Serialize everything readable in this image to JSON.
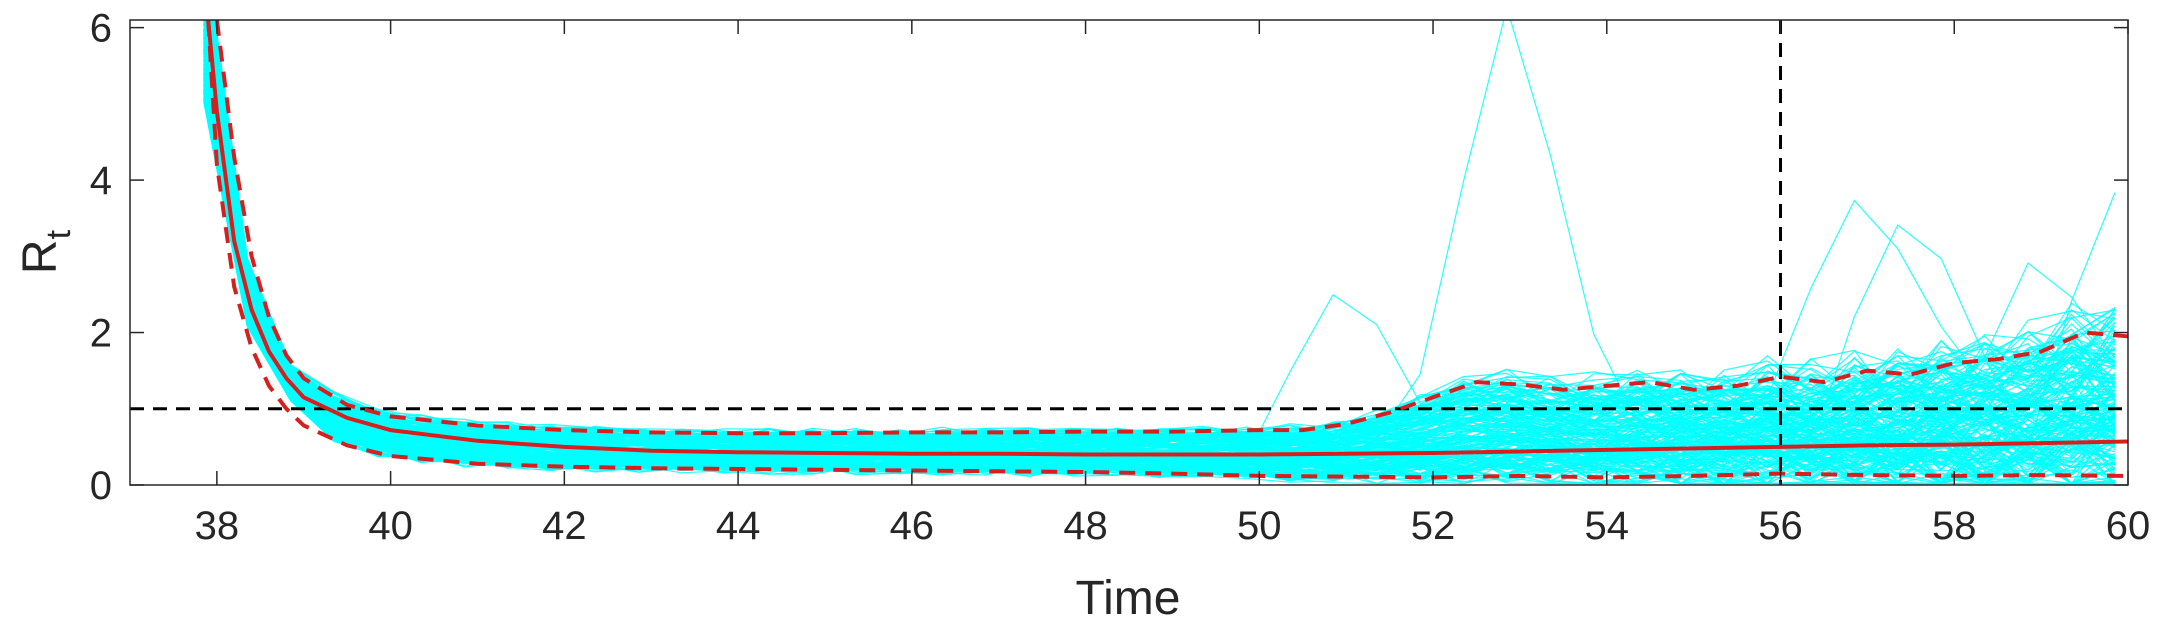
{
  "chart_data": {
    "type": "line",
    "title": "",
    "xlabel": "Time",
    "ylabel": {
      "main": "R",
      "subscript": "t"
    },
    "xlim": [
      37,
      60
    ],
    "ylim": [
      0,
      6.1
    ],
    "xticks": [
      38,
      40,
      42,
      44,
      46,
      48,
      50,
      52,
      54,
      56,
      58,
      60
    ],
    "yticks": [
      0,
      2,
      4,
      6
    ],
    "grid": false,
    "box": true,
    "reference_lines": [
      {
        "orientation": "horizontal",
        "value": 1,
        "style": "dashed",
        "color": "#000000"
      },
      {
        "orientation": "vertical",
        "value": 56,
        "style": "dashed",
        "color": "#000000"
      }
    ],
    "colors": {
      "samples": "#00FFFF",
      "mean": "#D62020",
      "bounds": "#D62020",
      "reference": "#000000",
      "axes": "#262626"
    },
    "sample_trajectories": {
      "count_approx": 200,
      "note_visible": "cyan posterior sample paths"
    },
    "series": [
      {
        "style": "solid",
        "x": [
          37.9,
          38.0,
          38.2,
          38.4,
          38.6,
          38.8,
          39.0,
          39.5,
          40,
          41,
          42,
          43,
          44,
          45,
          46,
          47,
          48,
          49,
          50,
          51,
          52,
          53,
          54,
          55,
          56,
          57,
          58,
          59,
          60
        ],
        "values": [
          6.1,
          4.9,
          3.2,
          2.3,
          1.75,
          1.4,
          1.15,
          0.88,
          0.72,
          0.58,
          0.5,
          0.45,
          0.43,
          0.42,
          0.41,
          0.41,
          0.4,
          0.4,
          0.4,
          0.41,
          0.42,
          0.44,
          0.46,
          0.48,
          0.5,
          0.52,
          0.53,
          0.55,
          0.57
        ]
      },
      {
        "style": "dashed",
        "x": [
          38.0,
          38.2,
          38.4,
          38.6,
          38.8,
          39.0,
          39.5,
          40,
          41,
          42,
          43,
          44,
          45,
          46,
          47,
          48,
          49,
          50,
          50.5,
          51,
          51.5,
          52,
          52.5,
          53,
          53.5,
          54,
          54.5,
          55,
          55.5,
          56,
          56.5,
          57,
          57.5,
          58,
          58.5,
          59,
          59.5,
          60
        ],
        "values": [
          6.1,
          4.3,
          3.0,
          2.2,
          1.7,
          1.4,
          1.05,
          0.9,
          0.78,
          0.72,
          0.69,
          0.68,
          0.68,
          0.69,
          0.69,
          0.7,
          0.7,
          0.72,
          0.72,
          0.8,
          0.95,
          1.15,
          1.35,
          1.32,
          1.25,
          1.3,
          1.35,
          1.25,
          1.3,
          1.42,
          1.35,
          1.5,
          1.45,
          1.6,
          1.65,
          1.75,
          2.0,
          1.95
        ]
      },
      {
        "style": "dashed",
        "x": [
          37.9,
          38.0,
          38.2,
          38.4,
          38.6,
          38.8,
          39.0,
          39.5,
          40,
          41,
          42,
          43,
          44,
          45,
          46,
          47,
          48,
          49,
          50,
          51,
          52,
          53,
          54,
          55,
          56,
          57,
          58,
          59,
          60
        ],
        "values": [
          6.1,
          4.2,
          2.6,
          1.8,
          1.3,
          1.0,
          0.78,
          0.52,
          0.38,
          0.28,
          0.24,
          0.22,
          0.21,
          0.2,
          0.19,
          0.18,
          0.17,
          0.15,
          0.12,
          0.11,
          0.1,
          0.12,
          0.1,
          0.12,
          0.15,
          0.13,
          0.12,
          0.13,
          0.12
        ]
      }
    ]
  }
}
